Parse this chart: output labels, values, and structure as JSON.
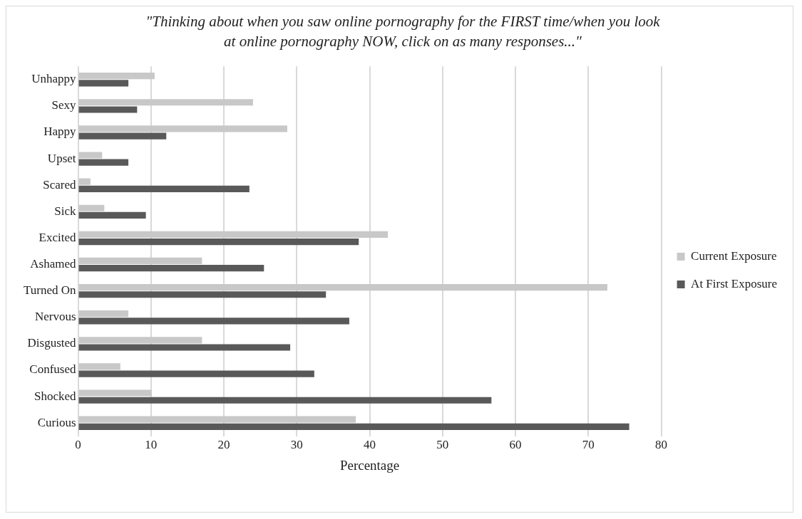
{
  "chart_data": {
    "type": "bar",
    "orientation": "horizontal",
    "title": "\"Thinking about when you saw online pornography for the FIRST time/when you look at online pornography NOW, click on as many responses...\"",
    "xlabel": "Percentage",
    "categories": [
      "Unhappy",
      "Sexy",
      "Happy",
      "Upset",
      "Scared",
      "Sick",
      "Excited",
      "Ashamed",
      "Turned On",
      "Nervous",
      "Disgusted",
      "Confused",
      "Shocked",
      "Curious"
    ],
    "series": [
      {
        "name": "Current Exposure",
        "color": "#c8c8c8",
        "values": [
          10.5,
          24,
          28.7,
          3.3,
          1.7,
          3.6,
          42.5,
          17,
          72.6,
          6.9,
          17,
          5.8,
          10.1,
          38.1
        ]
      },
      {
        "name": "At First Exposure",
        "color": "#595959",
        "values": [
          6.9,
          8.1,
          12.1,
          6.9,
          23.5,
          9.3,
          38.5,
          25.5,
          34,
          37.2,
          29.1,
          32.4,
          56.7,
          75.6
        ]
      }
    ],
    "xlim": [
      0,
      80
    ],
    "xticks": [
      0,
      10,
      20,
      30,
      40,
      50,
      60,
      70,
      80
    ],
    "grid": "x",
    "legend": "right"
  }
}
